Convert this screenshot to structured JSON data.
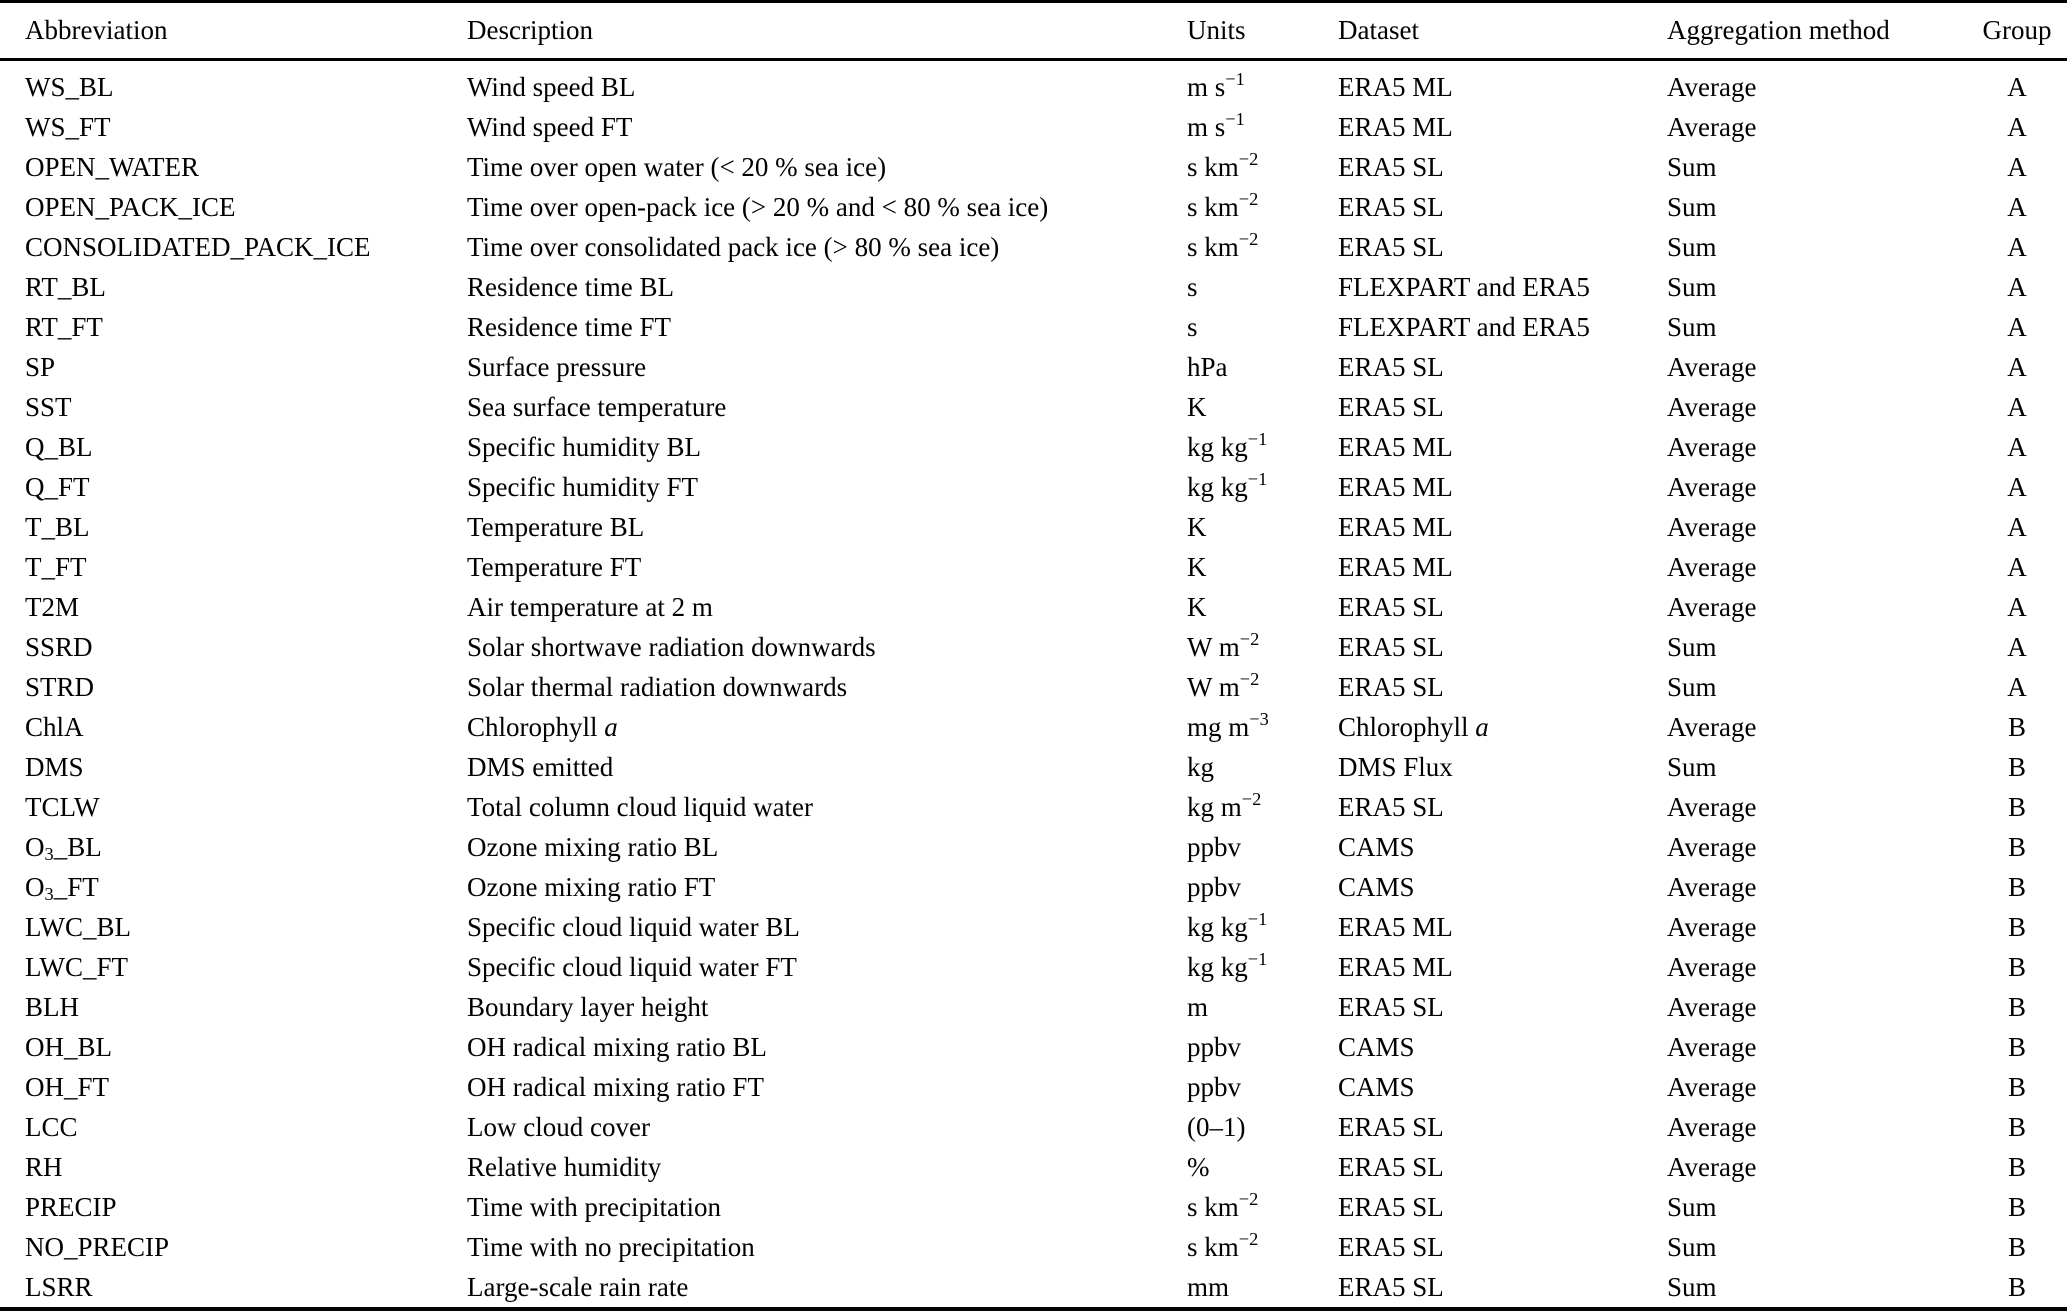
{
  "table": {
    "columns": [
      {
        "key": "abbreviation",
        "label": "Abbreviation",
        "align": "left"
      },
      {
        "key": "description",
        "label": "Description",
        "align": "left"
      },
      {
        "key": "units",
        "label": "Units",
        "align": "left"
      },
      {
        "key": "dataset",
        "label": "Dataset",
        "align": "left"
      },
      {
        "key": "aggregation_method",
        "label": "Aggregation method",
        "align": "left"
      },
      {
        "key": "group",
        "label": "Group",
        "align": "center"
      }
    ],
    "rows": [
      [
        "WS_BL",
        "Wind speed BL",
        "m s^{−1}",
        "ERA5 ML",
        "Average",
        "A"
      ],
      [
        "WS_FT",
        "Wind speed FT",
        "m s^{−1}",
        "ERA5 ML",
        "Average",
        "A"
      ],
      [
        "OPEN_WATER",
        "Time over open water (< 20 % sea ice)",
        "s km^{−2}",
        "ERA5 SL",
        "Sum",
        "A"
      ],
      [
        "OPEN_PACK_ICE",
        "Time over open-pack ice (> 20 % and < 80 % sea ice)",
        "s km^{−2}",
        "ERA5 SL",
        "Sum",
        "A"
      ],
      [
        "CONSOLIDATED_PACK_ICE",
        "Time over consolidated pack ice (> 80 % sea ice)",
        "s km^{−2}",
        "ERA5 SL",
        "Sum",
        "A"
      ],
      [
        "RT_BL",
        "Residence time BL",
        "s",
        "FLEXPART and ERA5",
        "Sum",
        "A"
      ],
      [
        "RT_FT",
        "Residence time FT",
        "s",
        "FLEXPART and ERA5",
        "Sum",
        "A"
      ],
      [
        "SP",
        "Surface pressure",
        "hPa",
        "ERA5 SL",
        "Average",
        "A"
      ],
      [
        "SST",
        "Sea surface temperature",
        "K",
        "ERA5 SL",
        "Average",
        "A"
      ],
      [
        "Q_BL",
        "Specific humidity BL",
        "kg kg^{−1}",
        "ERA5 ML",
        "Average",
        "A"
      ],
      [
        "Q_FT",
        "Specific humidity FT",
        "kg kg^{−1}",
        "ERA5 ML",
        "Average",
        "A"
      ],
      [
        "T_BL",
        "Temperature BL",
        "K",
        "ERA5 ML",
        "Average",
        "A"
      ],
      [
        "T_FT",
        "Temperature FT",
        "K",
        "ERA5 ML",
        "Average",
        "A"
      ],
      [
        "T2M",
        "Air temperature at 2 m",
        "K",
        "ERA5 SL",
        "Average",
        "A"
      ],
      [
        "SSRD",
        "Solar shortwave radiation downwards",
        "W m^{−2}",
        "ERA5 SL",
        "Sum",
        "A"
      ],
      [
        "STRD",
        "Solar thermal radiation downwards",
        "W m^{−2}",
        "ERA5 SL",
        "Sum",
        "A"
      ],
      [
        "ChlA",
        "Chlorophyll *a*",
        "mg m^{−3}",
        "Chlorophyll *a*",
        "Average",
        "B"
      ],
      [
        "DMS",
        "DMS emitted",
        "kg",
        "DMS Flux",
        "Sum",
        "B"
      ],
      [
        "TCLW",
        "Total column cloud liquid water",
        "kg m^{−2}",
        "ERA5 SL",
        "Average",
        "B"
      ],
      [
        "O~{3}_BL",
        "Ozone mixing ratio BL",
        "ppbv",
        "CAMS",
        "Average",
        "B"
      ],
      [
        "O~{3}_FT",
        "Ozone mixing ratio FT",
        "ppbv",
        "CAMS",
        "Average",
        "B"
      ],
      [
        "LWC_BL",
        "Specific cloud liquid water BL",
        "kg kg^{−1}",
        "ERA5 ML",
        "Average",
        "B"
      ],
      [
        "LWC_FT",
        "Specific cloud liquid water FT",
        "kg kg^{−1}",
        "ERA5 ML",
        "Average",
        "B"
      ],
      [
        "BLH",
        "Boundary layer height",
        "m",
        "ERA5 SL",
        "Average",
        "B"
      ],
      [
        "OH_BL",
        "OH radical mixing ratio BL",
        "ppbv",
        "CAMS",
        "Average",
        "B"
      ],
      [
        "OH_FT",
        "OH radical mixing ratio FT",
        "ppbv",
        "CAMS",
        "Average",
        "B"
      ],
      [
        "LCC",
        "Low cloud cover",
        "(0–1)",
        "ERA5 SL",
        "Average",
        "B"
      ],
      [
        "RH",
        "Relative humidity",
        "%",
        "ERA5 SL",
        "Average",
        "B"
      ],
      [
        "PRECIP",
        "Time with precipitation",
        "s km^{−2}",
        "ERA5 SL",
        "Sum",
        "B"
      ],
      [
        "NO_PRECIP",
        "Time with no precipitation",
        "s km^{−2}",
        "ERA5 SL",
        "Sum",
        "B"
      ],
      [
        "LSRR",
        "Large-scale rain rate",
        "mm",
        "ERA5 SL",
        "Sum",
        "B"
      ]
    ]
  }
}
